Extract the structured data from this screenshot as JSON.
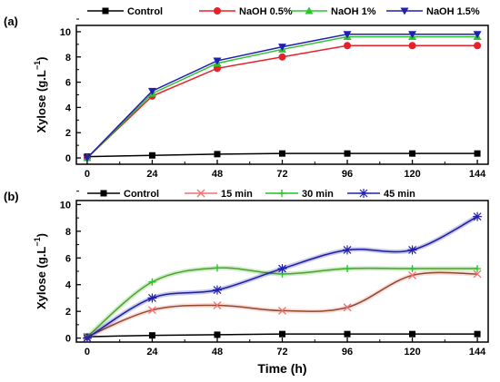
{
  "chart_data": [
    {
      "panel_label": "(a)",
      "type": "line",
      "ylabel": "Xylose (g.L",
      "ylabel_sup": "−1",
      "ylabel_tail": ")",
      "xlabel": "",
      "x": [
        0,
        24,
        48,
        72,
        96,
        120,
        144
      ],
      "x_ticks": [
        "0",
        "24",
        "48",
        "72",
        "96",
        "120",
        "144"
      ],
      "y_ticks": [
        "0",
        "2",
        "4",
        "6",
        "8",
        "10"
      ],
      "ylim": [
        -0.5,
        10.5
      ],
      "xlim": [
        -4,
        148
      ],
      "legend_position": "top",
      "series": [
        {
          "name": "Control",
          "color": "#000000",
          "marker": "square",
          "values": [
            0.1,
            0.2,
            0.3,
            0.35,
            0.35,
            0.35,
            0.35
          ]
        },
        {
          "name": "NaOH 0.5%",
          "color": "#e8202a",
          "marker": "circle",
          "values": [
            0.0,
            4.9,
            7.1,
            8.0,
            8.9,
            8.9,
            8.9
          ]
        },
        {
          "name": "NaOH 1%",
          "color": "#2ec42e",
          "marker": "triangle-up",
          "values": [
            0.0,
            5.1,
            7.5,
            8.6,
            9.6,
            9.6,
            9.6
          ]
        },
        {
          "name": "NaOH 1.5%",
          "color": "#1f1fb4",
          "marker": "triangle-down",
          "values": [
            0.0,
            5.3,
            7.7,
            8.8,
            9.8,
            9.8,
            9.8
          ]
        }
      ]
    },
    {
      "panel_label": "(b)",
      "type": "line",
      "ylabel": "Xylose (g.L",
      "ylabel_sup": "−1",
      "ylabel_tail": ")",
      "xlabel": "Time (h)",
      "x": [
        0,
        24,
        48,
        72,
        96,
        120,
        144
      ],
      "x_ticks": [
        "0",
        "24",
        "48",
        "72",
        "96",
        "120",
        "144"
      ],
      "y_ticks": [
        "0",
        "2",
        "4",
        "6",
        "8",
        "10"
      ],
      "ylim": [
        -0.3,
        10.3
      ],
      "xlim": [
        -4,
        148
      ],
      "legend_position": "top",
      "series": [
        {
          "name": "Control",
          "color": "#000000",
          "marker": "square",
          "curve_color": "#000000",
          "values": [
            0.1,
            0.2,
            0.25,
            0.3,
            0.3,
            0.3,
            0.3
          ]
        },
        {
          "name": "15 min",
          "color": "#f07070",
          "marker": "x",
          "curve_color": "#8b4a2a",
          "values": [
            0.1,
            2.1,
            2.45,
            2.05,
            2.3,
            4.7,
            4.8
          ]
        },
        {
          "name": "30 min",
          "color": "#22c422",
          "marker": "plus",
          "curve_color": "#5a9a2a",
          "values": [
            0.1,
            4.2,
            5.25,
            4.8,
            5.2,
            5.2,
            5.2
          ]
        },
        {
          "name": "45 min",
          "color": "#2020b0",
          "marker": "star",
          "curve_color": "#1c1ca0",
          "values": [
            0.0,
            3.0,
            3.6,
            5.2,
            6.6,
            6.6,
            9.1
          ]
        }
      ]
    }
  ]
}
